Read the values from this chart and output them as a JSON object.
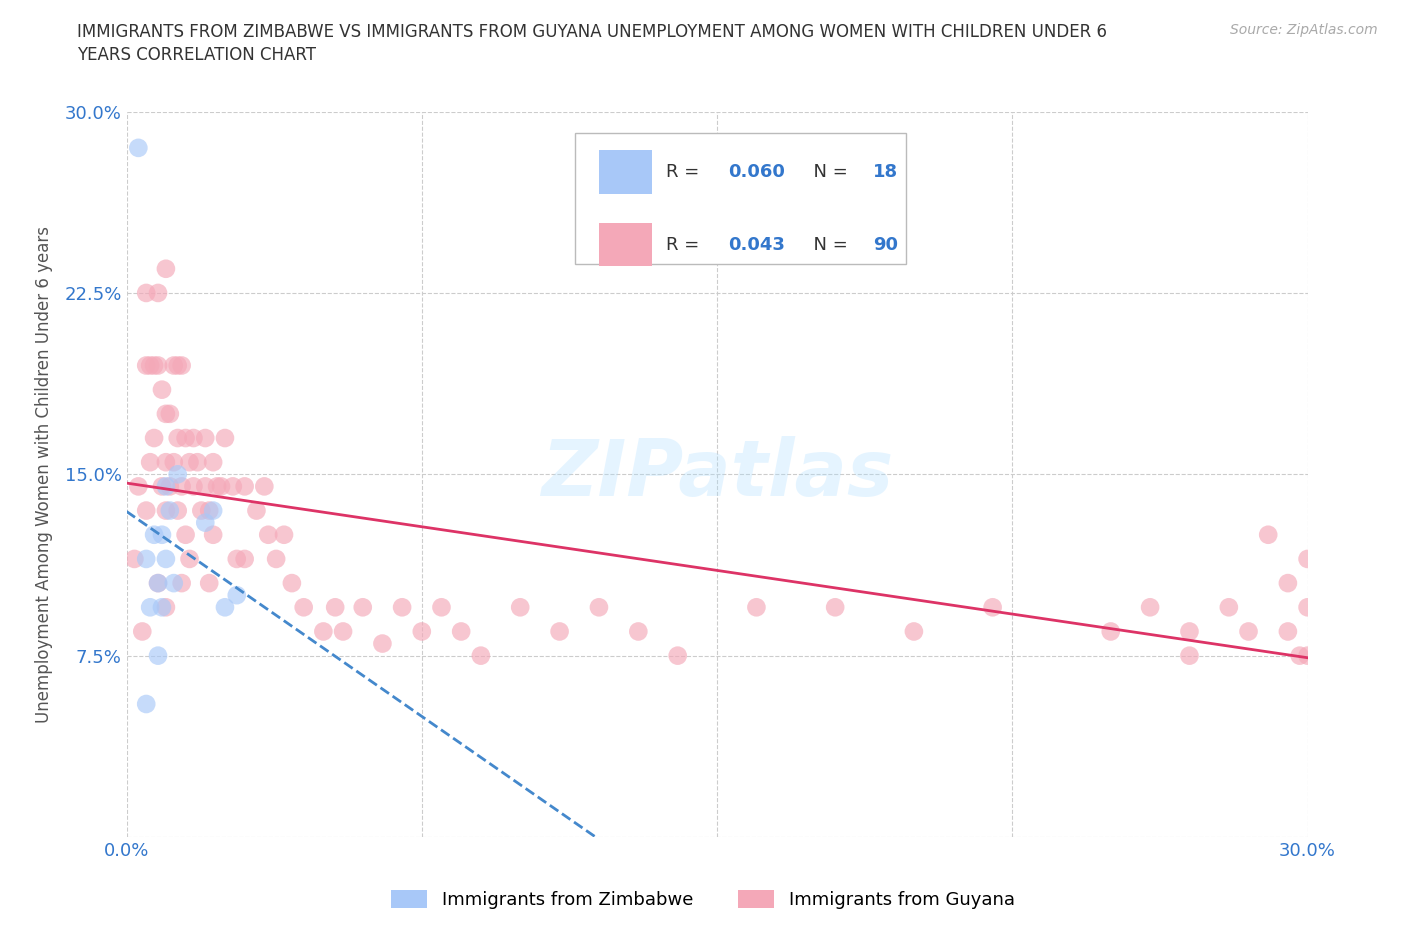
{
  "title_line1": "IMMIGRANTS FROM ZIMBABWE VS IMMIGRANTS FROM GUYANA UNEMPLOYMENT AMONG WOMEN WITH CHILDREN UNDER 6",
  "title_line2": "YEARS CORRELATION CHART",
  "source": "Source: ZipAtlas.com",
  "ylabel": "Unemployment Among Women with Children Under 6 years",
  "xlim": [
    0.0,
    0.3
  ],
  "ylim": [
    0.0,
    0.3
  ],
  "xticklabels": [
    "0.0%",
    "",
    "",
    "",
    "30.0%"
  ],
  "yticklabels": [
    "",
    "7.5%",
    "15.0%",
    "22.5%",
    "30.0%"
  ],
  "color_zimbabwe": "#a8c8f8",
  "color_guyana": "#f4a8b8",
  "trendline_zimbabwe_color": "#4488cc",
  "trendline_guyana_color": "#dd3366",
  "watermark": "ZIPatlas",
  "zimbabwe_x": [
    0.003,
    0.005,
    0.005,
    0.006,
    0.007,
    0.008,
    0.008,
    0.009,
    0.009,
    0.01,
    0.01,
    0.011,
    0.012,
    0.013,
    0.02,
    0.022,
    0.025,
    0.028
  ],
  "zimbabwe_y": [
    0.285,
    0.115,
    0.055,
    0.095,
    0.125,
    0.105,
    0.075,
    0.125,
    0.095,
    0.145,
    0.115,
    0.135,
    0.105,
    0.15,
    0.13,
    0.135,
    0.095,
    0.1
  ],
  "guyana_x": [
    0.002,
    0.003,
    0.004,
    0.005,
    0.005,
    0.005,
    0.006,
    0.006,
    0.007,
    0.007,
    0.008,
    0.008,
    0.008,
    0.009,
    0.009,
    0.01,
    0.01,
    0.01,
    0.01,
    0.01,
    0.011,
    0.011,
    0.012,
    0.012,
    0.013,
    0.013,
    0.013,
    0.014,
    0.014,
    0.014,
    0.015,
    0.015,
    0.016,
    0.016,
    0.017,
    0.017,
    0.018,
    0.019,
    0.02,
    0.02,
    0.021,
    0.021,
    0.022,
    0.022,
    0.023,
    0.024,
    0.025,
    0.027,
    0.028,
    0.03,
    0.03,
    0.033,
    0.035,
    0.036,
    0.038,
    0.04,
    0.042,
    0.045,
    0.05,
    0.053,
    0.055,
    0.06,
    0.065,
    0.07,
    0.075,
    0.08,
    0.085,
    0.09,
    0.1,
    0.11,
    0.12,
    0.13,
    0.14,
    0.16,
    0.18,
    0.2,
    0.22,
    0.25,
    0.26,
    0.27,
    0.27,
    0.28,
    0.285,
    0.29,
    0.295,
    0.295,
    0.298,
    0.3,
    0.3,
    0.3
  ],
  "guyana_y": [
    0.115,
    0.145,
    0.085,
    0.195,
    0.225,
    0.135,
    0.195,
    0.155,
    0.195,
    0.165,
    0.225,
    0.195,
    0.105,
    0.185,
    0.145,
    0.235,
    0.175,
    0.155,
    0.135,
    0.095,
    0.175,
    0.145,
    0.195,
    0.155,
    0.195,
    0.165,
    0.135,
    0.195,
    0.145,
    0.105,
    0.165,
    0.125,
    0.155,
    0.115,
    0.165,
    0.145,
    0.155,
    0.135,
    0.165,
    0.145,
    0.135,
    0.105,
    0.155,
    0.125,
    0.145,
    0.145,
    0.165,
    0.145,
    0.115,
    0.145,
    0.115,
    0.135,
    0.145,
    0.125,
    0.115,
    0.125,
    0.105,
    0.095,
    0.085,
    0.095,
    0.085,
    0.095,
    0.08,
    0.095,
    0.085,
    0.095,
    0.085,
    0.075,
    0.095,
    0.085,
    0.095,
    0.085,
    0.075,
    0.095,
    0.095,
    0.085,
    0.095,
    0.085,
    0.095,
    0.085,
    0.075,
    0.095,
    0.085,
    0.125,
    0.105,
    0.085,
    0.075,
    0.115,
    0.095,
    0.075
  ]
}
